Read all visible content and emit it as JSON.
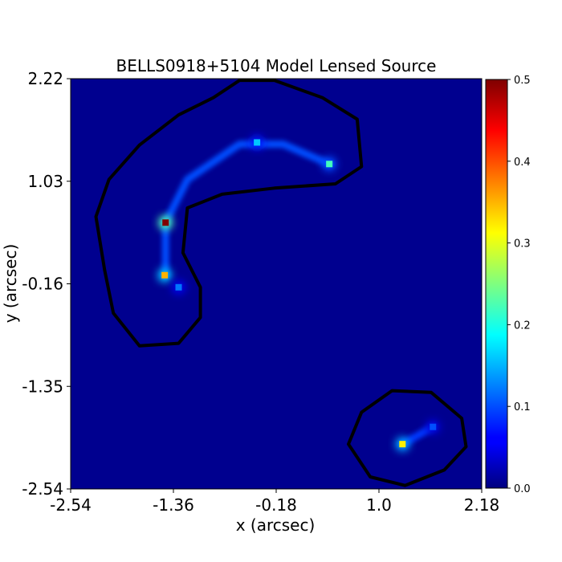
{
  "chart_data": {
    "type": "heatmap",
    "title": "BELLS0918+5104 Model Lensed Source",
    "xlabel": "x (arcsec)",
    "ylabel": "y (arcsec)",
    "xlim": [
      -2.54,
      2.18
    ],
    "ylim": [
      -2.54,
      2.22
    ],
    "x_ticks": [
      "-2.54",
      "-1.36",
      "-0.18",
      "1.0",
      "2.18"
    ],
    "x_tick_values": [
      -2.54,
      -1.36,
      -0.18,
      1.0,
      2.18
    ],
    "y_ticks": [
      "-2.54",
      "-1.35",
      "-0.16",
      "1.03",
      "2.22"
    ],
    "y_tick_values": [
      -2.54,
      -1.35,
      -0.16,
      1.03,
      2.22
    ],
    "colormap": "jet",
    "colorbar": {
      "min": 0.0,
      "max": 0.5,
      "ticks": [
        "0.0",
        "0.1",
        "0.2",
        "0.3",
        "0.4",
        "0.5"
      ],
      "tick_values": [
        0.0,
        0.1,
        0.2,
        0.3,
        0.4,
        0.5
      ]
    },
    "bright_spots": [
      {
        "x": -1.45,
        "y": 0.55,
        "value": 0.5
      },
      {
        "x": -1.46,
        "y": -0.06,
        "value": 0.35
      },
      {
        "x": -1.3,
        "y": -0.2,
        "value": 0.12
      },
      {
        "x": -0.4,
        "y": 1.48,
        "value": 0.16
      },
      {
        "x": 0.43,
        "y": 1.23,
        "value": 0.22
      },
      {
        "x": 1.27,
        "y": -2.02,
        "value": 0.32
      },
      {
        "x": 1.62,
        "y": -1.82,
        "value": 0.1
      }
    ],
    "arcs": [
      {
        "points": [
          [
            -1.45,
            -0.06
          ],
          [
            -1.45,
            0.55
          ],
          [
            -1.2,
            1.05
          ],
          [
            -0.6,
            1.46
          ],
          [
            -0.1,
            1.46
          ],
          [
            0.43,
            1.23
          ]
        ],
        "value": 0.1
      },
      {
        "points": [
          [
            1.27,
            -2.02
          ],
          [
            1.62,
            -1.82
          ]
        ],
        "value": 0.09
      }
    ],
    "mask_contours": [
      {
        "points": [
          [
            -2.25,
            0.62
          ],
          [
            -2.1,
            1.05
          ],
          [
            -1.75,
            1.45
          ],
          [
            -1.3,
            1.8
          ],
          [
            -0.9,
            2.0
          ],
          [
            -0.6,
            2.2
          ],
          [
            -0.2,
            2.2
          ],
          [
            0.35,
            2.0
          ],
          [
            0.75,
            1.75
          ],
          [
            0.8,
            1.2
          ],
          [
            0.5,
            1.0
          ],
          [
            -0.2,
            0.95
          ],
          [
            -0.8,
            0.88
          ],
          [
            -1.2,
            0.72
          ],
          [
            -1.25,
            0.2
          ],
          [
            -1.05,
            -0.2
          ],
          [
            -1.05,
            -0.55
          ],
          [
            -1.3,
            -0.85
          ],
          [
            -1.75,
            -0.88
          ],
          [
            -2.05,
            -0.5
          ],
          [
            -2.15,
            0.0
          ]
        ]
      },
      {
        "points": [
          [
            0.65,
            -2.02
          ],
          [
            0.8,
            -1.65
          ],
          [
            1.15,
            -1.4
          ],
          [
            1.6,
            -1.42
          ],
          [
            1.95,
            -1.72
          ],
          [
            2.0,
            -2.05
          ],
          [
            1.75,
            -2.32
          ],
          [
            1.3,
            -2.5
          ],
          [
            0.9,
            -2.4
          ]
        ]
      }
    ]
  }
}
